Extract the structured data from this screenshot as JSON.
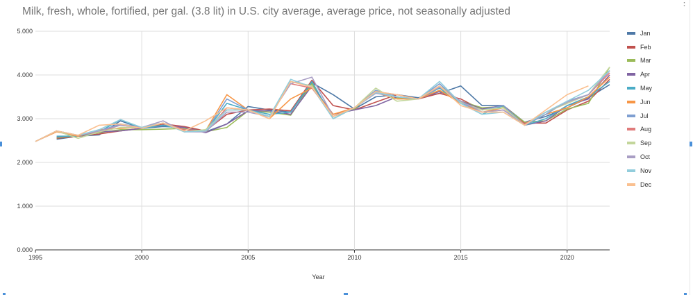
{
  "chart_data": {
    "type": "line",
    "title": "Milk, fresh, whole, fortified, per gal. (3.8 lit) in U.S. city average, average price, not seasonally adjusted",
    "xlabel": "Year",
    "ylabel": "",
    "xlim": [
      1995,
      2022
    ],
    "ylim": [
      0,
      5
    ],
    "x_ticks": [
      "1995",
      "2000",
      "2005",
      "2010",
      "2015",
      "2020"
    ],
    "y_ticks": [
      "0.000",
      "1.000",
      "2.000",
      "3.000",
      "4.000",
      "5.000"
    ],
    "grid": true,
    "legend_position": "right",
    "x": [
      1995,
      1996,
      1997,
      1998,
      1999,
      2000,
      2001,
      2002,
      2003,
      2004,
      2005,
      2006,
      2007,
      2008,
      2009,
      2010,
      2011,
      2012,
      2013,
      2014,
      2015,
      2016,
      2017,
      2018,
      2019,
      2020,
      2021,
      2022
    ],
    "series": [
      {
        "name": "Jan",
        "color": "#4e79a7",
        "values": [
          null,
          2.53,
          2.6,
          2.63,
          2.95,
          2.78,
          2.82,
          2.8,
          2.7,
          2.88,
          3.28,
          3.2,
          3.15,
          3.82,
          3.55,
          3.22,
          3.5,
          3.55,
          3.48,
          3.58,
          3.75,
          3.3,
          3.3,
          2.92,
          3.05,
          3.25,
          3.48,
          3.78
        ]
      },
      {
        "name": "Feb",
        "color": "#c0504d",
        "values": [
          null,
          2.55,
          2.6,
          2.65,
          2.72,
          2.78,
          2.88,
          2.82,
          2.72,
          3.1,
          3.2,
          3.22,
          3.18,
          3.88,
          3.3,
          3.2,
          3.38,
          3.55,
          3.45,
          3.58,
          3.45,
          3.2,
          3.3,
          2.9,
          2.9,
          3.2,
          3.4,
          3.9
        ]
      },
      {
        "name": "Mar",
        "color": "#9bbb59",
        "values": [
          null,
          2.56,
          2.62,
          2.68,
          2.75,
          2.75,
          2.76,
          2.78,
          2.7,
          2.8,
          3.18,
          3.15,
          3.08,
          3.8,
          3.05,
          3.22,
          3.65,
          3.48,
          3.45,
          3.65,
          3.4,
          3.25,
          3.28,
          2.92,
          2.95,
          3.22,
          3.35,
          4.18
        ]
      },
      {
        "name": "Apr",
        "color": "#8064a2",
        "values": [
          null,
          2.58,
          2.62,
          2.7,
          2.72,
          2.78,
          2.85,
          2.8,
          2.68,
          2.88,
          3.18,
          3.18,
          3.1,
          3.75,
          3.1,
          3.2,
          3.3,
          3.5,
          3.45,
          3.62,
          3.4,
          3.22,
          3.3,
          2.85,
          2.95,
          3.3,
          3.45,
          4.0
        ]
      },
      {
        "name": "May",
        "color": "#4bacc6",
        "values": [
          null,
          2.6,
          2.6,
          2.7,
          2.98,
          2.78,
          2.85,
          2.75,
          2.7,
          3.35,
          3.2,
          3.1,
          3.15,
          3.85,
          3.0,
          3.25,
          3.6,
          3.5,
          3.45,
          3.7,
          3.35,
          3.1,
          3.3,
          2.85,
          3.0,
          3.3,
          3.5,
          3.85
        ]
      },
      {
        "name": "Jun",
        "color": "#f79646",
        "values": [
          2.48,
          2.7,
          2.6,
          2.75,
          2.78,
          2.8,
          2.9,
          2.75,
          2.72,
          3.55,
          3.2,
          3.0,
          3.45,
          3.7,
          3.1,
          3.25,
          3.6,
          3.45,
          3.45,
          3.65,
          3.35,
          3.15,
          3.25,
          2.85,
          3.1,
          3.25,
          3.5,
          3.95
        ]
      },
      {
        "name": "Jul",
        "color": "#7f9fd1",
        "values": [
          2.48,
          2.72,
          2.62,
          2.72,
          2.88,
          2.8,
          2.9,
          2.75,
          2.7,
          3.45,
          3.2,
          3.05,
          3.85,
          3.75,
          3.0,
          3.25,
          3.65,
          3.5,
          3.45,
          3.8,
          3.35,
          3.2,
          3.3,
          2.85,
          3.1,
          3.4,
          3.55,
          4.1
        ]
      },
      {
        "name": "Aug",
        "color": "#e07b7b",
        "values": [
          2.48,
          2.72,
          2.62,
          2.7,
          2.85,
          2.8,
          2.9,
          2.75,
          2.7,
          3.25,
          3.2,
          3.05,
          3.8,
          3.7,
          3.05,
          3.25,
          3.62,
          3.55,
          3.45,
          3.75,
          3.4,
          3.15,
          3.2,
          2.88,
          3.15,
          3.35,
          3.55,
          4.05
        ]
      },
      {
        "name": "Sep",
        "color": "#c3d69b",
        "values": [
          2.48,
          2.72,
          2.55,
          2.7,
          2.8,
          2.8,
          2.9,
          2.7,
          2.75,
          3.2,
          3.2,
          3.05,
          3.85,
          3.75,
          3.0,
          3.25,
          3.7,
          3.4,
          3.45,
          3.75,
          3.38,
          3.2,
          3.25,
          2.85,
          3.15,
          3.35,
          3.55,
          4.18
        ]
      },
      {
        "name": "Oct",
        "color": "#a99ec4",
        "values": [
          2.48,
          2.72,
          2.62,
          2.72,
          2.85,
          2.8,
          2.95,
          2.7,
          2.7,
          3.15,
          3.15,
          3.05,
          3.8,
          3.95,
          3.05,
          3.25,
          3.58,
          3.5,
          3.45,
          3.72,
          3.4,
          3.15,
          3.2,
          2.85,
          3.15,
          3.38,
          3.55,
          4.1
        ]
      },
      {
        "name": "Nov",
        "color": "#92cddc",
        "values": [
          2.48,
          2.72,
          2.62,
          2.75,
          2.98,
          2.8,
          2.9,
          2.7,
          2.72,
          3.2,
          3.2,
          3.05,
          3.9,
          3.72,
          3.0,
          3.25,
          3.6,
          3.5,
          3.45,
          3.85,
          3.35,
          3.1,
          3.15,
          2.85,
          3.15,
          3.4,
          3.65,
          4.1
        ]
      },
      {
        "name": "Dec",
        "color": "#fac090",
        "values": [
          2.48,
          2.72,
          2.62,
          2.85,
          2.88,
          2.78,
          2.9,
          2.72,
          2.95,
          3.25,
          3.2,
          3.0,
          3.85,
          3.72,
          3.05,
          3.25,
          3.62,
          3.55,
          3.45,
          3.75,
          3.3,
          3.15,
          3.15,
          2.85,
          3.2,
          3.55,
          3.75,
          null
        ]
      }
    ]
  }
}
